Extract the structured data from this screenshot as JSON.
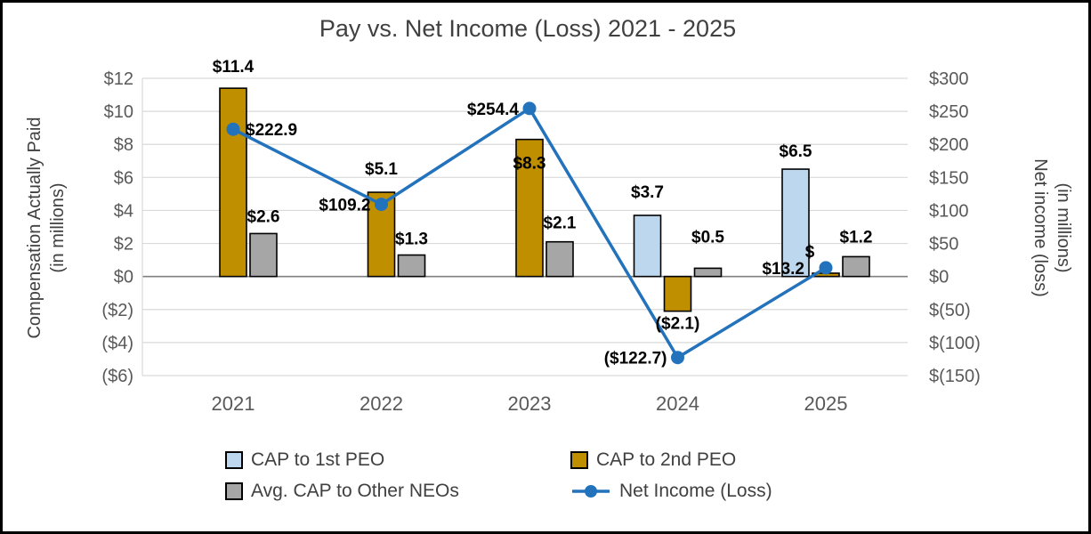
{
  "title": "Pay vs. Net Income (Loss) 2021 - 2025",
  "left_axis": {
    "title": [
      "Compensation Actually Paid",
      "(in millions)"
    ],
    "ticks": [
      "$12",
      "$10",
      "$8",
      "$6",
      "$4",
      "$2",
      "$0",
      "($2)",
      "($4)",
      "($6)"
    ],
    "max": 12,
    "min": -6,
    "step": 2
  },
  "right_axis": {
    "title": [
      "Net income (loss)",
      "(in millions)"
    ],
    "ticks": [
      "$300",
      "$250",
      "$200",
      "$150",
      "$100",
      "$50",
      "$0",
      "$(50)",
      "$(100)",
      "$(150)"
    ],
    "max": 300,
    "min": -150,
    "step": 50
  },
  "chart_data": {
    "type": "bar+line combo",
    "categories": [
      "2021",
      "2022",
      "2023",
      "2024",
      "2025"
    ],
    "grid": true,
    "legend_position": "bottom",
    "colors": {
      "gridline": "#D9D9D9",
      "zero_line": "#7F7F7F",
      "bar_border": "#000000",
      "axis_text": "#595959",
      "title_text": "#404040",
      "data_label": "#000000"
    },
    "series": [
      {
        "key": "cap_1st_peo",
        "name": "CAP to 1st PEO",
        "type": "bar",
        "axis": "left",
        "color": "#BDD7EE",
        "values": [
          null,
          null,
          null,
          3.7,
          6.5
        ],
        "labels": [
          null,
          null,
          null,
          "$3.7",
          "$6.5"
        ],
        "label_dy": [
          0,
          0,
          0,
          -12,
          -6
        ]
      },
      {
        "key": "cap_2nd_peo",
        "name": "CAP to 2nd PEO",
        "type": "bar",
        "axis": "left",
        "color": "#BF8F00",
        "values": [
          11.4,
          5.1,
          8.3,
          -2.1,
          0.2
        ],
        "labels": [
          "$11.4",
          "$5.1",
          "$8.3",
          "($2.1)",
          "$"
        ],
        "label_dx": [
          0,
          0,
          0,
          0,
          -18
        ],
        "label_dy": [
          -10,
          -12,
          41,
          0,
          -10
        ]
      },
      {
        "key": "avg_cap_other_neos",
        "name": "Avg. CAP to Other NEOs",
        "type": "bar",
        "axis": "left",
        "color": "#A6A6A6",
        "values": [
          2.6,
          1.3,
          2.1,
          0.5,
          1.2
        ],
        "labels": [
          "$2.6",
          "$1.3",
          "$2.1",
          "$0.5",
          "$1.2"
        ],
        "label_dy": [
          -5,
          -4,
          -7,
          -21,
          -8
        ]
      },
      {
        "key": "net_income",
        "name": "Net Income (Loss)",
        "type": "line",
        "axis": "right",
        "color": "#2372BC",
        "values": [
          222.9,
          109.2,
          254.4,
          -122.7,
          13.2
        ],
        "labels": [
          "$222.9",
          "$109.2",
          "$254.4",
          "($122.7)",
          "$13.2"
        ],
        "label_side": [
          "right",
          "left",
          "left",
          "left",
          "left"
        ],
        "label_dx": [
          0,
          0,
          0,
          0,
          -12
        ]
      }
    ]
  }
}
